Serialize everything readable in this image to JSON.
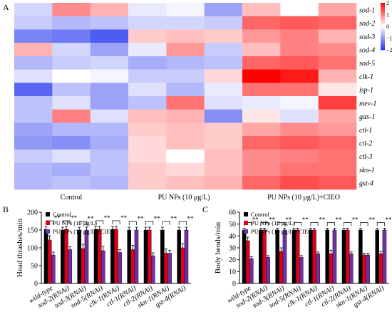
{
  "panel_labels": [
    "A",
    "B",
    "C"
  ],
  "colors": {
    "control": "#000000",
    "pu": "#e0001b",
    "cieo": "#7030a0",
    "heat_low": "#2233ee",
    "heat_mid": "#ffffff",
    "heat_high": "#ff0000"
  },
  "chart_data": [
    {
      "type": "heatmap",
      "panel": "A",
      "columns": 9,
      "column_groups": [
        "Control",
        "PU NPs (10 μg/L)",
        "PU NPs (10 μg/L)+CIEO"
      ],
      "rows": [
        "sod-1",
        "sod-2",
        "sod-3",
        "sod-4",
        "sod-5",
        "clk-1",
        "isp-1",
        "mev-1",
        "gas-1",
        "ctl-1",
        "ctl-2",
        "ctl-3",
        "skn-1",
        "gst-4"
      ],
      "values": [
        [
          -0.4,
          0.9,
          0.6,
          -0.2,
          -0.1,
          -0.9,
          0.5,
          0.0,
          0.7
        ],
        [
          -0.5,
          -0.7,
          -0.6,
          -0.4,
          -0.4,
          -0.5,
          1.2,
          1.3,
          1.2
        ],
        [
          -1.2,
          -1.3,
          -1.6,
          0.4,
          0.5,
          0.4,
          0.8,
          1.0,
          0.6
        ],
        [
          0.6,
          -0.4,
          -0.9,
          -0.2,
          0.8,
          -0.5,
          0.5,
          1.0,
          0.9
        ],
        [
          -0.7,
          -0.5,
          -0.4,
          -0.8,
          -0.7,
          -0.6,
          1.2,
          1.3,
          1.1
        ],
        [
          -0.3,
          0.0,
          -0.1,
          -0.5,
          -0.5,
          0.3,
          2.1,
          1.8,
          0.6
        ],
        [
          -1.5,
          -0.6,
          -0.9,
          -0.3,
          -0.7,
          -0.2,
          1.1,
          1.1,
          0.2
        ],
        [
          -0.6,
          -0.3,
          -0.9,
          -0.6,
          1.1,
          -0.3,
          -0.2,
          -0.1,
          1.5
        ],
        [
          -0.6,
          1.0,
          -0.3,
          0.5,
          0.6,
          -1.1,
          0.2,
          -0.3,
          0.7
        ],
        [
          -0.9,
          -0.7,
          -0.7,
          0.4,
          0.5,
          0.4,
          0.7,
          0.9,
          0.8
        ],
        [
          -1.0,
          -1.1,
          -0.8,
          0.3,
          0.5,
          0.4,
          1.2,
          1.3,
          1.2
        ],
        [
          -0.5,
          -0.3,
          -0.6,
          0.3,
          0.0,
          0.5,
          0.9,
          1.0,
          1.1
        ],
        [
          -0.7,
          -0.8,
          -0.6,
          0.4,
          0.3,
          0.5,
          0.9,
          1.1,
          1.1
        ],
        [
          -0.7,
          -0.6,
          -0.7,
          0.4,
          0.5,
          0.6,
          1.2,
          1.4,
          1.3
        ]
      ],
      "colorbar_ticks": [
        2,
        1,
        0,
        -1,
        -2
      ],
      "vmin": -2,
      "vmax": 2
    },
    {
      "type": "bar",
      "panel": "B",
      "ylabel": "Head thrashes/min",
      "ylim": [
        0,
        200
      ],
      "yticks": [
        0,
        50,
        100,
        150,
        200
      ],
      "categories": [
        "wild-type",
        "sod-2(RNAi)",
        "sod-3(RNAi)",
        "sod-5(RNAi)",
        "clk-1(RNAi)",
        "ctl-1(RNAi)",
        "ctl-2(RNAi)",
        "skn-1(RNAi)",
        "gst-4(RNAi)"
      ],
      "series": [
        {
          "name": "Control",
          "values": [
            152,
            150,
            150,
            152,
            152,
            150,
            150,
            150,
            150
          ],
          "errors": [
            8,
            8,
            8,
            8,
            8,
            8,
            8,
            8,
            8
          ]
        },
        {
          "name": "PU NPs (10 μg/L)",
          "values": [
            122,
            152,
            98,
            152,
            152,
            95,
            150,
            85,
            100
          ],
          "errors": [
            12,
            8,
            12,
            8,
            8,
            12,
            8,
            12,
            12
          ]
        },
        {
          "name": "PU NPs (10 μg/L)+CIEO",
          "values": [
            80,
            95,
            150,
            92,
            87,
            150,
            78,
            85,
            150
          ],
          "errors": [
            8,
            8,
            8,
            12,
            8,
            8,
            8,
            8,
            8
          ]
        }
      ],
      "significance": "**",
      "legend": "top-left"
    },
    {
      "type": "bar",
      "panel": "C",
      "ylabel": "Body bends/min",
      "ylim": [
        0,
        60
      ],
      "yticks": [
        0,
        10,
        20,
        30,
        40,
        50,
        60
      ],
      "categories": [
        "wild-type",
        "sod-2(RNAi)",
        "sod-3(RNAi)",
        "sod-5(RNAi)",
        "clk-1(RNAi)",
        "ctl-1(RNAi)",
        "ctl-2(RNAi)",
        "skn-1(RNAi)",
        "gst-4(RNAi)"
      ],
      "series": [
        {
          "name": "Control",
          "values": [
            45,
            45,
            45,
            45,
            45,
            45,
            45,
            45,
            45
          ],
          "errors": [
            1.5,
            1.5,
            1.5,
            1.5,
            1.5,
            1.5,
            1.5,
            1.5,
            1.5
          ]
        },
        {
          "name": "PU NPs (10 μg/L)",
          "values": [
            36,
            45,
            27,
            45,
            45,
            25,
            45,
            24,
            25
          ],
          "errors": [
            3,
            1.5,
            3,
            1.5,
            1.5,
            3,
            1.5,
            1.5,
            2
          ]
        },
        {
          "name": "PU NPs (10 μg/L)+CIEO",
          "values": [
            21,
            22,
            45,
            22,
            25,
            45,
            25,
            24,
            45
          ],
          "errors": [
            1.5,
            1.5,
            1.5,
            1.5,
            1.5,
            1.5,
            1.5,
            1.5,
            1.5
          ]
        }
      ],
      "significance": "**",
      "legend": "top-left"
    }
  ]
}
